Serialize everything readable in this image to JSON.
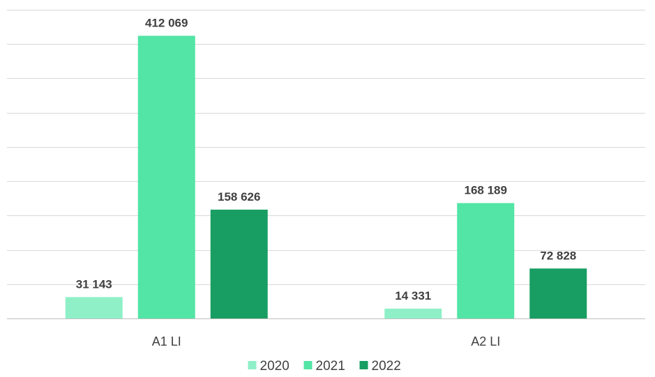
{
  "chart_data": {
    "type": "bar",
    "categories": [
      "A1 LI",
      "A2 LI"
    ],
    "series": [
      {
        "name": "2020",
        "values": [
          31143,
          14331
        ],
        "labels": [
          "31 143",
          "14 331"
        ],
        "color": "#8ff0c8"
      },
      {
        "name": "2021",
        "values": [
          412069,
          168189
        ],
        "labels": [
          "412 069",
          "168 189"
        ],
        "color": "#52e5a6"
      },
      {
        "name": "2022",
        "values": [
          158626,
          72828
        ],
        "labels": [
          "158 626",
          "72 828"
        ],
        "color": "#189e62"
      }
    ],
    "ylim": [
      0,
      450000
    ],
    "ytick_step": 50000,
    "grid": true,
    "legend_position": "bottom",
    "title": "",
    "xlabel": "",
    "ylabel": ""
  }
}
